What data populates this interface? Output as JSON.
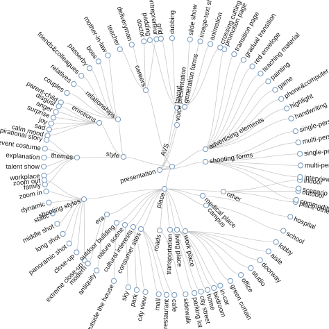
{
  "chart_data": {
    "type": "radial-tree",
    "title": "",
    "root": "AVS",
    "branches": [
      {
        "name": "careers",
        "children": [
          "teacher",
          "deliveryman",
          "doctor",
          "entrepreneur"
        ]
      },
      {
        "name": "relationships",
        "children": [
          "parent-child",
          "couples",
          "relatives",
          "friends&colleagues",
          "passerby",
          "boss",
          "mother-in-law"
        ]
      },
      {
        "name": "emotions",
        "children": [
          "calm mood",
          "sad",
          "joy",
          "surprise",
          "anger",
          "disgust"
        ]
      },
      {
        "name": "themes",
        "children": [
          "family",
          "workplace",
          "talent show",
          "explanation",
          "event costume",
          "inspirational story"
        ]
      },
      {
        "name": "style",
        "children": []
      },
      {
        "name": "shooting styles",
        "children": [
          "extreme close-up",
          "close-up",
          "panoramic shot",
          "long shot",
          "middle shot",
          "static",
          "dynamic",
          "zoom in",
          "zoom out"
        ]
      },
      {
        "name": "era",
        "children": [
          "antiquity",
          "modern"
        ]
      },
      {
        "name": "outdoor building",
        "children": [
          "outside the house"
        ]
      },
      {
        "name": "nature scene",
        "children": [
          "sky"
        ]
      },
      {
        "name": "cultural interests",
        "children": [
          "city view",
          "park"
        ]
      },
      {
        "name": "consumer sites",
        "children": [
          "cafe",
          "restaurant",
          "mall"
        ]
      },
      {
        "name": "roads",
        "children": [
          "sidewalk"
        ]
      },
      {
        "name": "transportation",
        "children": [
          "city street",
          "parking lot"
        ]
      },
      {
        "name": "living place",
        "children": [
          "in-car",
          "bedroom",
          "home"
        ]
      },
      {
        "name": "work place",
        "children": [
          "lobby",
          "aisle",
          "doorway",
          "studio",
          "office",
          "green curtain"
        ]
      },
      {
        "name": "campus",
        "children": [
          "school"
        ]
      },
      {
        "name": "medical place",
        "children": [
          "hospital"
        ]
      },
      {
        "name": "other",
        "children": [
          "indoor",
          "outdoor",
          "place-other"
        ]
      },
      {
        "name": "place",
        "children": []
      },
      {
        "name": "shooting forms",
        "children": [
          "single-person shot",
          "multi-person shot",
          "single-person with object",
          "multi-person with object",
          "interview",
          "scenario interpretation",
          "commodity display"
        ]
      },
      {
        "name": "advertising elements",
        "children": [
          "promotion page",
          "transition page",
          "gradual transition",
          "red envelope",
          "teaching material",
          "painting",
          "game",
          "phone&computer",
          "highlight",
          "handwriting"
        ]
      },
      {
        "name": "generation forms",
        "children": [
          "slide show",
          "image-text shifting",
          "animation",
          "crossing cutting"
        ]
      },
      {
        "name": "presentation",
        "children": []
      },
      {
        "name": "voice presentation",
        "children": [
          "dubbing"
        ]
      },
      {
        "name": "layout",
        "children": [
          "padding",
          "grid"
        ]
      }
    ]
  }
}
